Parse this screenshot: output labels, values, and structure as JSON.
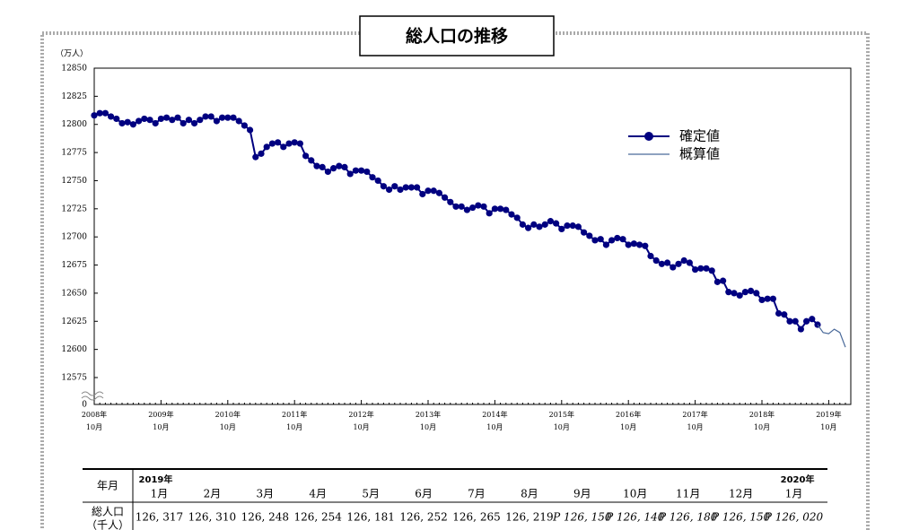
{
  "chart_data": {
    "type": "line",
    "title": "総人口の推移",
    "y_unit": "（万人）",
    "categories": [
      [
        "2008年",
        "10月"
      ],
      null,
      null,
      null,
      null,
      null,
      null,
      null,
      null,
      null,
      null,
      null,
      [
        "2009年",
        "10月"
      ],
      null,
      null,
      null,
      null,
      null,
      null,
      null,
      null,
      null,
      null,
      null,
      [
        "2010年",
        "10月"
      ],
      null,
      null,
      null,
      null,
      null,
      null,
      null,
      null,
      null,
      null,
      null,
      [
        "2011年",
        "10月"
      ],
      null,
      null,
      null,
      null,
      null,
      null,
      null,
      null,
      null,
      null,
      null,
      [
        "2012年",
        "10月"
      ],
      null,
      null,
      null,
      null,
      null,
      null,
      null,
      null,
      null,
      null,
      null,
      [
        "2013年",
        "10月"
      ],
      null,
      null,
      null,
      null,
      null,
      null,
      null,
      null,
      null,
      null,
      null,
      [
        "2014年",
        "10月"
      ],
      null,
      null,
      null,
      null,
      null,
      null,
      null,
      null,
      null,
      null,
      null,
      [
        "2015年",
        "10月"
      ],
      null,
      null,
      null,
      null,
      null,
      null,
      null,
      null,
      null,
      null,
      null,
      [
        "2016年",
        "10月"
      ],
      null,
      null,
      null,
      null,
      null,
      null,
      null,
      null,
      null,
      null,
      null,
      [
        "2017年",
        "10月"
      ],
      null,
      null,
      null,
      null,
      null,
      null,
      null,
      null,
      null,
      null,
      null,
      [
        "2018年",
        "10月"
      ],
      null,
      null,
      null,
      null,
      null,
      null,
      null,
      null,
      null,
      null,
      null,
      [
        "2019年",
        "10月"
      ],
      null,
      null,
      null
    ],
    "series": [
      {
        "name": "確定値",
        "color": "#000080",
        "markers": true,
        "values": [
          12808,
          12810,
          12810,
          12807,
          12805,
          12801,
          12802,
          12800,
          12803,
          12805,
          12804,
          12801,
          12805,
          12806,
          12804,
          12806,
          12801,
          12804,
          12801,
          12804,
          12807,
          12807,
          12803,
          12806,
          12806,
          12806,
          12803,
          12799,
          12795,
          12771,
          12774,
          12780,
          12783,
          12784,
          12780,
          12783,
          12784,
          12783,
          12772,
          12768,
          12763,
          12762,
          12758,
          12761,
          12763,
          12762,
          12756,
          12759,
          12759,
          12758,
          12753,
          12750,
          12745,
          12742,
          12745,
          12742,
          12744,
          12744,
          12744,
          12738,
          12741,
          12741,
          12739,
          12735,
          12731,
          12727,
          12727,
          12724,
          12726,
          12728,
          12727,
          12721,
          12725,
          12725,
          12724,
          12720,
          12717,
          12711,
          12708,
          12711,
          12709,
          12711,
          12714,
          12712,
          12707,
          12710,
          12710,
          12709,
          12704,
          12701,
          12697,
          12698,
          12693,
          12697,
          12699,
          12698,
          12693,
          12694,
          12693,
          12692,
          12683,
          12679,
          12676,
          12677,
          12673,
          12676,
          12679,
          12677,
          12671,
          12672,
          12672,
          12670,
          12660,
          12661,
          12651,
          12650,
          12648,
          12651,
          12652,
          12650,
          12644,
          12645,
          12645,
          12632,
          12631,
          12625,
          12625,
          12618,
          12625,
          12627,
          12622,
          null,
          null,
          null,
          null,
          null
        ]
      },
      {
        "name": "概算値",
        "color": "#4a6a9a",
        "markers": false,
        "values": [
          null,
          null,
          null,
          null,
          null,
          null,
          null,
          null,
          null,
          null,
          null,
          null,
          null,
          null,
          null,
          null,
          null,
          null,
          null,
          null,
          null,
          null,
          null,
          null,
          null,
          null,
          null,
          null,
          null,
          null,
          null,
          null,
          null,
          null,
          null,
          null,
          null,
          null,
          null,
          null,
          null,
          null,
          null,
          null,
          null,
          null,
          null,
          null,
          null,
          null,
          null,
          null,
          null,
          null,
          null,
          null,
          null,
          null,
          null,
          null,
          null,
          null,
          null,
          null,
          null,
          null,
          null,
          null,
          null,
          null,
          null,
          null,
          null,
          null,
          null,
          null,
          null,
          null,
          null,
          null,
          null,
          null,
          null,
          null,
          null,
          null,
          null,
          null,
          null,
          null,
          null,
          null,
          null,
          null,
          null,
          null,
          null,
          null,
          null,
          null,
          null,
          null,
          null,
          null,
          null,
          null,
          null,
          null,
          null,
          null,
          null,
          null,
          null,
          null,
          null,
          null,
          null,
          null,
          null,
          null,
          null,
          null,
          null,
          null,
          null,
          null,
          null,
          null,
          null,
          null,
          12622,
          12615,
          12614,
          12618,
          12615,
          12602
        ]
      }
    ],
    "ylim": [
      12575,
      12850
    ],
    "yticks": [
      0,
      12575,
      12600,
      12625,
      12650,
      12675,
      12700,
      12725,
      12750,
      12775,
      12800,
      12825,
      12850
    ],
    "y_break": true,
    "grid": false
  },
  "table": {
    "corner": "年月",
    "columns": [
      {
        "year": "2019年",
        "month": "1月"
      },
      {
        "month": "2月"
      },
      {
        "month": "3月"
      },
      {
        "month": "4月"
      },
      {
        "month": "5月"
      },
      {
        "month": "6月"
      },
      {
        "month": "7月"
      },
      {
        "month": "8月"
      },
      {
        "month": "9月"
      },
      {
        "month": "10月"
      },
      {
        "month": "11月"
      },
      {
        "month": "12月"
      },
      {
        "year": "2020年",
        "month": "1月"
      }
    ],
    "row_label": [
      "総人口",
      "（千人）"
    ],
    "cells": [
      "126, 317",
      "126, 310",
      "126, 248",
      "126, 254",
      "126, 181",
      "126, 252",
      "126, 265",
      "126, 219",
      "P 126, 150",
      "P 126, 140",
      "P 126, 180",
      "P 126, 150",
      "P 126, 020"
    ],
    "provisional": [
      false,
      false,
      false,
      false,
      false,
      false,
      false,
      false,
      true,
      true,
      true,
      true,
      true
    ]
  }
}
